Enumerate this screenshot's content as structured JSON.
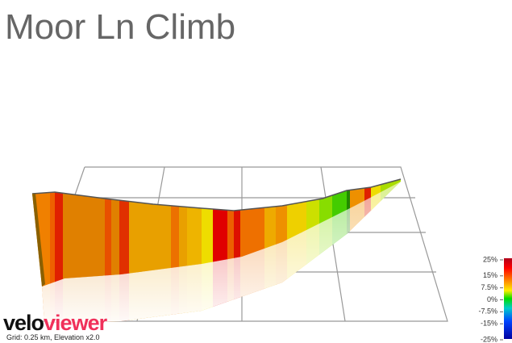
{
  "title": "Moor Ln Climb",
  "legend": {
    "range": [
      -25,
      25
    ],
    "ticks": [
      {
        "value": 25,
        "label": "25%"
      },
      {
        "value": 15,
        "label": "15%"
      },
      {
        "value": 7.5,
        "label": "7.5%"
      },
      {
        "value": 0,
        "label": "0%"
      },
      {
        "value": -7.5,
        "label": "-7.5%"
      },
      {
        "value": -15,
        "label": "-15%"
      },
      {
        "value": -25,
        "label": "-25%"
      }
    ]
  },
  "logo": {
    "part1": "velo",
    "part2": "viewer"
  },
  "caption": "Grid: 0.25 km, Elevation x2.0"
}
